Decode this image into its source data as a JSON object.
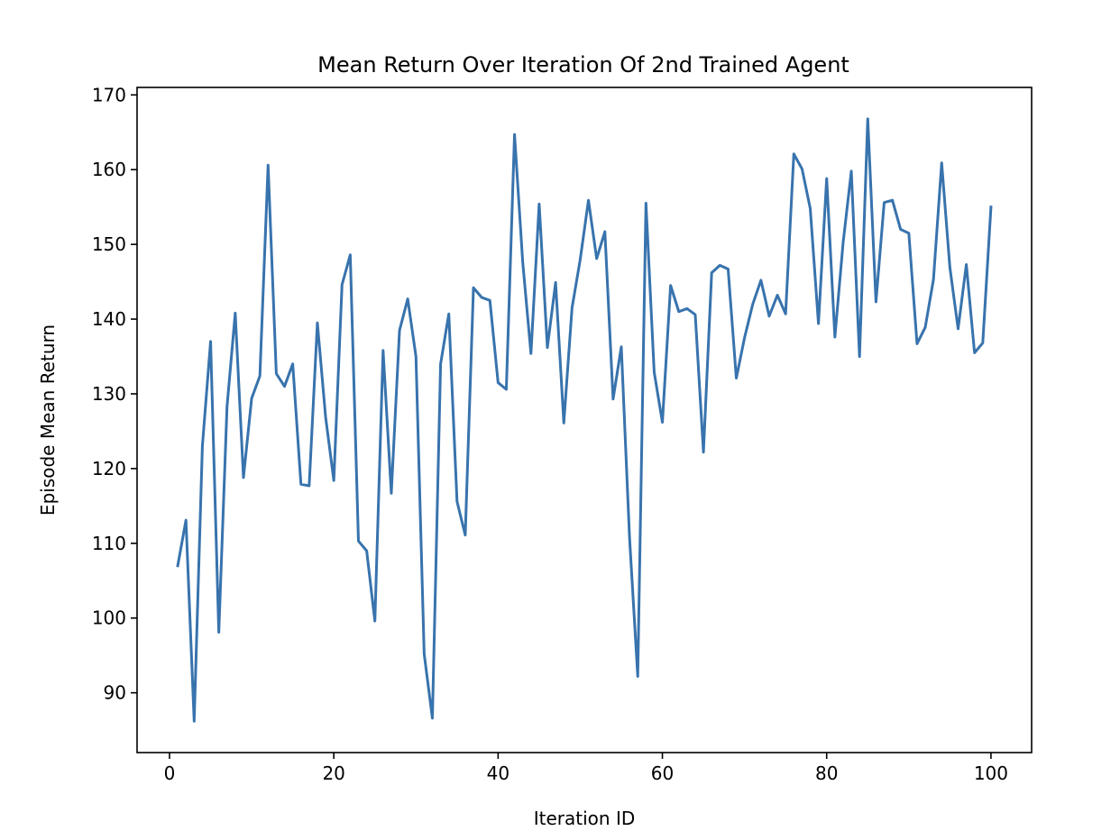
{
  "chart_data": {
    "type": "line",
    "title": "Mean Return Over Iteration Of 2nd Trained Agent",
    "xlabel": "Iteration ID",
    "ylabel": "Episode Mean Return",
    "xlim": [
      -3.95,
      104.95
    ],
    "ylim": [
      82.0,
      171.0
    ],
    "xticks": [
      0,
      20,
      40,
      60,
      80,
      100
    ],
    "yticks": [
      90,
      100,
      110,
      120,
      130,
      140,
      150,
      160,
      170
    ],
    "grid": false,
    "legend": "none",
    "color": "#3873ad",
    "series": [
      {
        "x": [
          1,
          2,
          3,
          4,
          5,
          6,
          7,
          8,
          9,
          10,
          11,
          12,
          13,
          14,
          15,
          16,
          17,
          18,
          19,
          20,
          21,
          22,
          23,
          24,
          25,
          26,
          27,
          28,
          29,
          30,
          31,
          32,
          33,
          34,
          35,
          36,
          37,
          38,
          39,
          40,
          41,
          42,
          43,
          44,
          45,
          46,
          47,
          48,
          49,
          50,
          51,
          52,
          53,
          54,
          55,
          56,
          57,
          58,
          59,
          60,
          61,
          62,
          63,
          64,
          65,
          66,
          67,
          68,
          69,
          70,
          71,
          72,
          73,
          74,
          75,
          76,
          77,
          78,
          79,
          80,
          81,
          82,
          83,
          84,
          85,
          86,
          87,
          88,
          89,
          90,
          91,
          92,
          93,
          94,
          95,
          96,
          97,
          98,
          99,
          100
        ],
        "y": [
          107.0,
          113.1,
          86.2,
          123.0,
          137.0,
          98.1,
          128.3,
          140.8,
          118.8,
          129.4,
          132.4,
          160.6,
          132.7,
          131.0,
          134.0,
          117.9,
          117.7,
          139.5,
          126.9,
          118.4,
          144.6,
          148.6,
          110.3,
          109.0,
          99.6,
          135.8,
          116.7,
          138.5,
          142.7,
          135.0,
          95.2,
          86.6,
          134.0,
          140.7,
          115.6,
          111.1,
          144.2,
          142.9,
          142.5,
          131.5,
          130.6,
          164.7,
          147.6,
          135.4,
          155.4,
          136.2,
          144.9,
          126.1,
          141.5,
          148.0,
          155.9,
          148.1,
          151.7,
          129.3,
          136.3,
          110.8,
          92.2,
          155.5,
          132.9,
          126.2,
          144.5,
          141.0,
          141.4,
          140.6,
          122.2,
          146.2,
          147.2,
          146.7,
          132.1,
          137.5,
          142.0,
          145.2,
          140.4,
          143.2,
          140.7,
          162.1,
          160.1,
          154.8,
          139.4,
          158.8,
          137.6,
          150.2,
          159.8,
          135.0,
          166.8,
          142.3,
          155.6,
          155.9,
          152.0,
          151.5,
          136.7,
          138.9,
          145.3,
          160.9,
          146.9,
          138.7,
          147.3,
          135.5,
          136.8,
          155.0
        ]
      }
    ]
  }
}
